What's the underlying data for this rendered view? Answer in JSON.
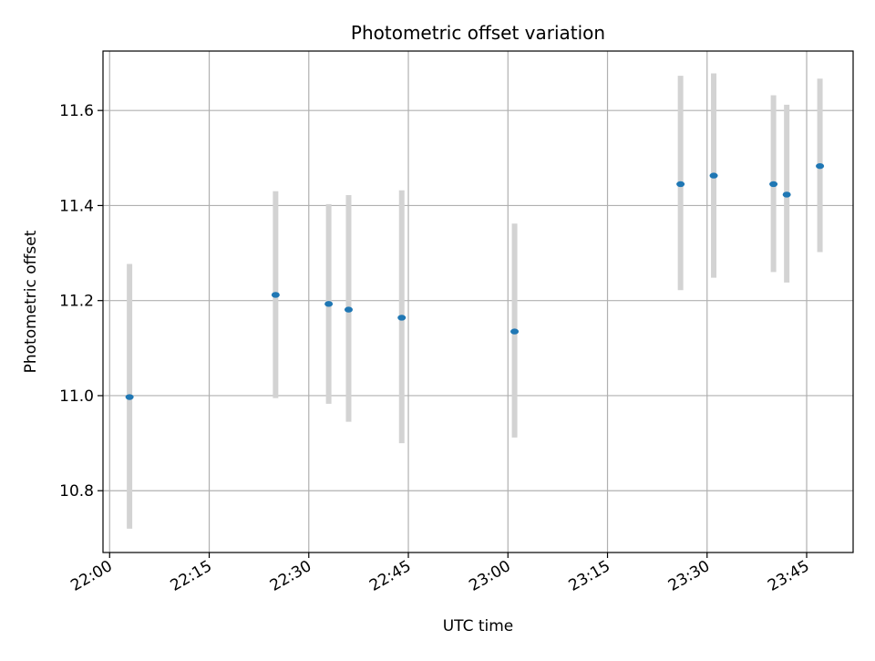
{
  "chart_data": {
    "type": "scatter",
    "title": "Photometric offset variation",
    "xlabel": "UTC time",
    "ylabel": "Photometric offset",
    "x_ticks": [
      "22:00",
      "22:15",
      "22:30",
      "22:45",
      "23:00",
      "23:15",
      "23:30",
      "23:45"
    ],
    "y_ticks": [
      "10.8",
      "11.0",
      "11.2",
      "11.4",
      "11.6"
    ],
    "xlim": [
      "21:59",
      "23:52"
    ],
    "ylim": [
      10.67,
      11.725
    ],
    "grid": true,
    "series": [
      {
        "x": [
          "22:03",
          "22:25",
          "22:33",
          "22:36",
          "22:44",
          "23:01",
          "23:26",
          "23:31",
          "23:40",
          "23:42",
          "23:47"
        ],
        "y": [
          10.997,
          11.212,
          11.193,
          11.181,
          11.164,
          11.135,
          11.445,
          11.463,
          11.445,
          11.423,
          11.483
        ],
        "y_lower": [
          10.72,
          10.995,
          10.983,
          10.945,
          10.9,
          10.912,
          11.222,
          11.248,
          11.26,
          11.238,
          11.302
        ],
        "y_upper": [
          11.277,
          11.43,
          11.403,
          11.422,
          11.432,
          11.362,
          11.673,
          11.678,
          11.632,
          11.612,
          11.667
        ]
      }
    ],
    "colors": {
      "point": "#1f77b4",
      "errorbar": "#d3d3d3",
      "grid": "#b0b0b0",
      "frame": "#000000"
    }
  }
}
